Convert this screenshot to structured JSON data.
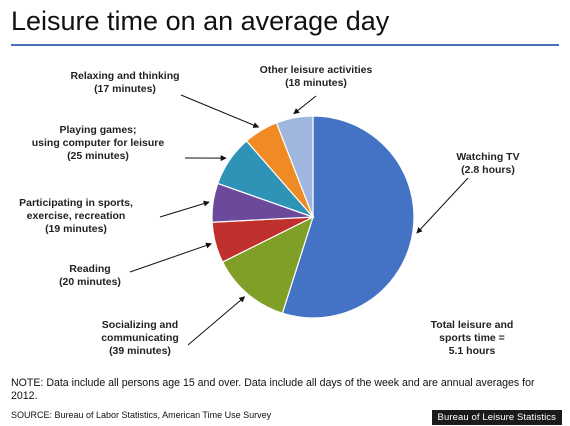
{
  "header": {
    "title": "Leisure time on an average day"
  },
  "chart_data": {
    "type": "pie",
    "title": "Leisure time on an average day",
    "unit": "hours",
    "slices": [
      {
        "label": [
          "Watching TV",
          "(2.8 hours)"
        ],
        "value": 2.8,
        "color": "#4472c4"
      },
      {
        "label": [
          "Socializing and",
          "communicating",
          "(39 minutes)"
        ],
        "value": 0.65,
        "color": "#7f9f26"
      },
      {
        "label": [
          "Reading",
          "(20 minutes)"
        ],
        "value": 0.333,
        "color": "#c0302c"
      },
      {
        "label": [
          "Participating in sports,",
          "exercise, recreation",
          "(19 minutes)"
        ],
        "value": 0.317,
        "color": "#6b4a9c"
      },
      {
        "label": [
          "Playing games;",
          "using computer for leisure",
          "(25 minutes)"
        ],
        "value": 0.417,
        "color": "#2f93b8"
      },
      {
        "label": [
          "Relaxing and thinking",
          "(17 minutes)"
        ],
        "value": 0.283,
        "color": "#f08a24"
      },
      {
        "label": [
          "Other leisure activities",
          "(18 minutes)"
        ],
        "value": 0.3,
        "color": "#9fb6de"
      }
    ],
    "total_label": [
      "Total leisure and",
      "sports time =",
      "5.1 hours"
    ]
  },
  "footer": {
    "note": "NOTE: Data include all persons age 15 and over. Data include all days of the week and are annual averages for 2012.",
    "source": "SOURCE: Bureau of Labor Statistics, American Time Use Survey",
    "badge": "Bureau of Leisure Statistics"
  }
}
